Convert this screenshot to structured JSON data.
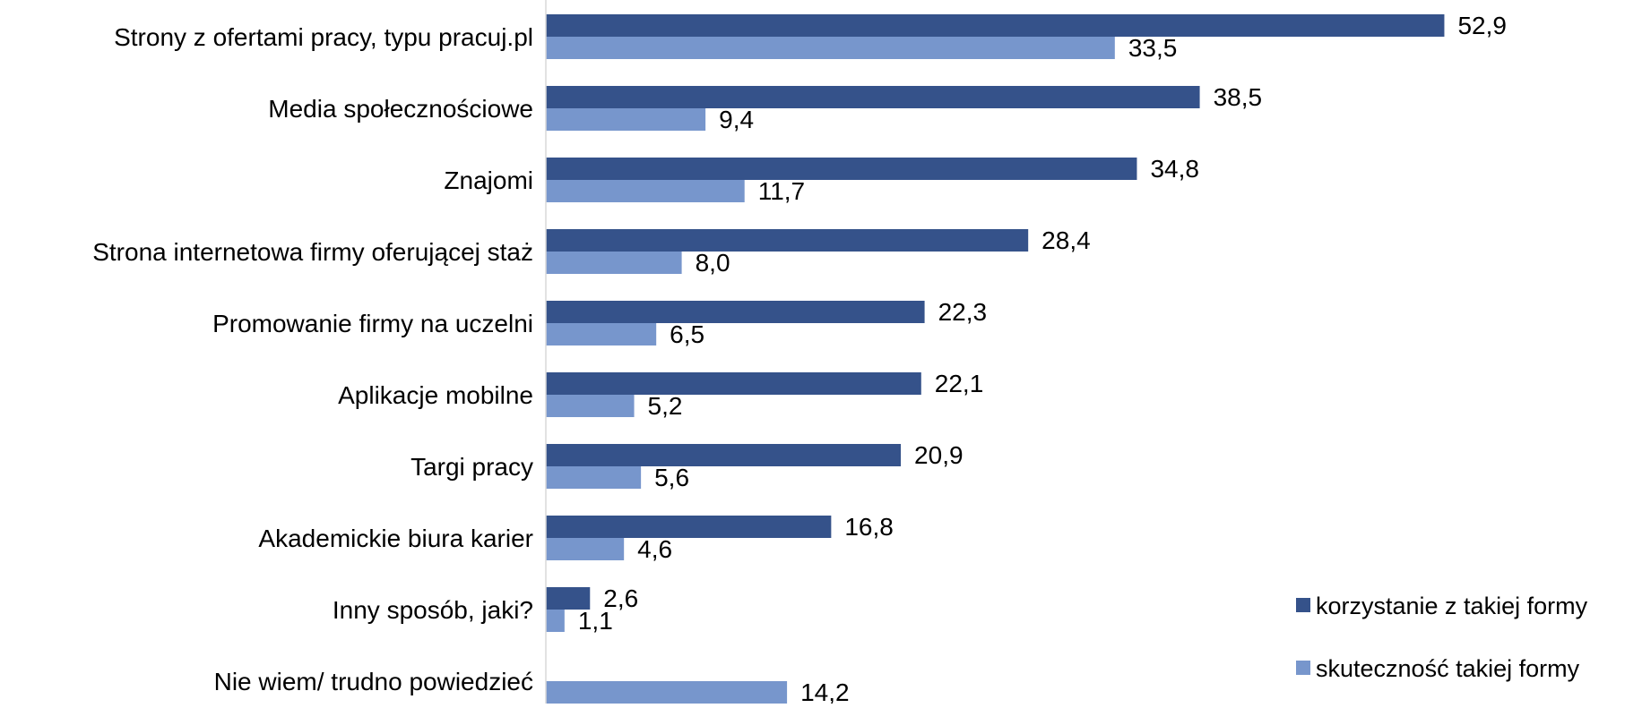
{
  "chart_data": {
    "type": "bar",
    "orientation": "horizontal",
    "title": "",
    "xlabel": "",
    "ylabel": "",
    "xlim": [
      0,
      65
    ],
    "grid": false,
    "legend_position": "bottom-right",
    "categories": [
      "Strony z ofertami pracy, typu pracuj.pl",
      "Media społecznościowe",
      "Znajomi",
      "Strona internetowa firmy oferującej staż",
      "Promowanie firmy na uczelni",
      "Aplikacje mobilne",
      "Targi pracy",
      "Akademickie biura karier",
      "Inny sposób, jaki?",
      "Nie wiem/ trudno powiedzieć"
    ],
    "series": [
      {
        "name": "korzystanie z takiej formy",
        "color": "#35528A",
        "values": [
          52.9,
          38.5,
          34.8,
          28.4,
          22.3,
          22.1,
          20.9,
          16.8,
          2.6,
          null
        ],
        "labels": [
          "52,9",
          "38,5",
          "34,8",
          "28,4",
          "22,3",
          "22,1",
          "20,9",
          "16,8",
          "2,6",
          null
        ]
      },
      {
        "name": "skuteczność takiej formy",
        "color": "#7796CC",
        "values": [
          33.5,
          9.4,
          11.7,
          8.0,
          6.5,
          5.2,
          5.6,
          4.6,
          1.1,
          14.2
        ],
        "labels": [
          "33,5",
          "9,4",
          "11,7",
          "8,0",
          "6,5",
          "5,2",
          "5,6",
          "4,6",
          "1,1",
          "14,2"
        ]
      }
    ]
  }
}
